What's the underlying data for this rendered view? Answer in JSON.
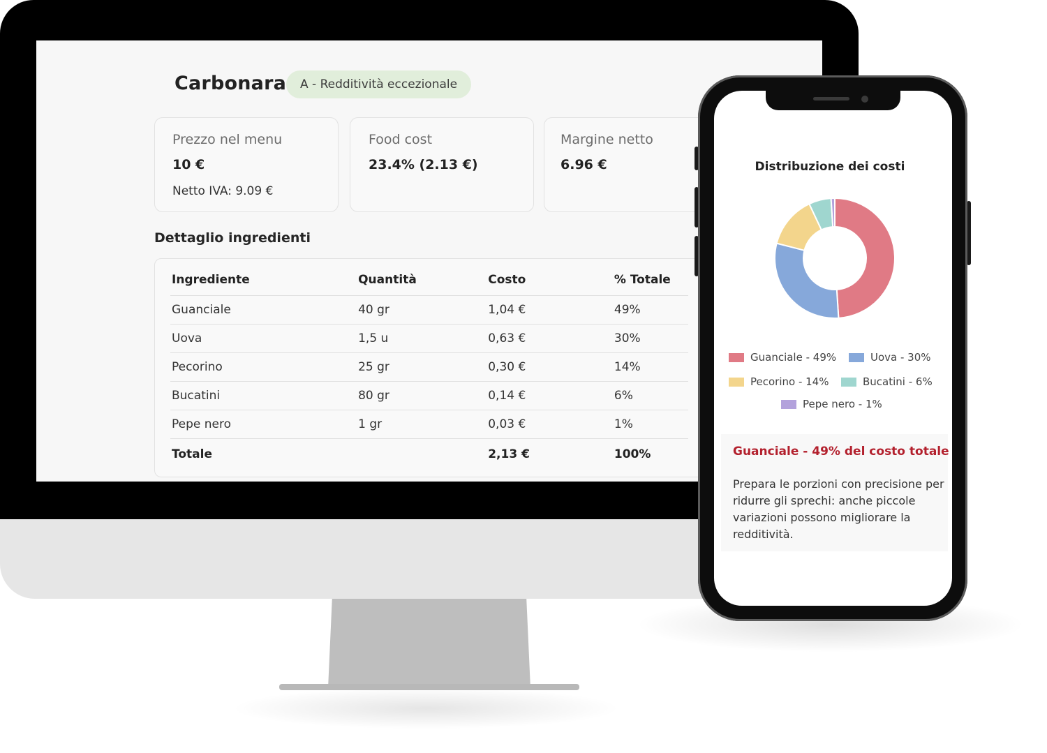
{
  "screen": {
    "dish_name": "Carbonara",
    "rating_badge": "A - Redditività eccezionale",
    "cards": {
      "price": {
        "label": "Prezzo nel menu",
        "value": "10 €",
        "sub": "Netto IVA: 9.09 €"
      },
      "food_cost": {
        "label": "Food cost",
        "value": "23.4% (2.13 €)"
      },
      "margin": {
        "label": "Margine netto",
        "value": "6.96 €"
      }
    },
    "section_title": "Dettaglio ingredienti",
    "table": {
      "headers": [
        "Ingrediente",
        "Quantità",
        "Costo",
        "% Totale"
      ],
      "rows": [
        [
          "Guanciale",
          "40 gr",
          "1,04 €",
          "49%"
        ],
        [
          "Uova",
          "1,5 u",
          "0,63 €",
          "30%"
        ],
        [
          "Pecorino",
          "25 gr",
          "0,30 €",
          "14%"
        ],
        [
          "Bucatini",
          "80 gr",
          "0,14 €",
          "6%"
        ],
        [
          "Pepe nero",
          "1 gr",
          "0,03 €",
          "1%"
        ]
      ],
      "total": [
        "Totale",
        "",
        "2,13 €",
        "100%"
      ]
    }
  },
  "phone": {
    "tip_title": "Guanciale - 49% del costo totale",
    "tip_text": "Prepara le porzioni con precisione per ridurre gli sprechi: anche piccole variazioni possono migliorare la redditività."
  },
  "legend": [
    {
      "label": "Guanciale - 49%",
      "color": "#e07a85"
    },
    {
      "label": "Uova - 30%",
      "color": "#86a8da"
    },
    {
      "label": "Pecorino - 14%",
      "color": "#f3d58c"
    },
    {
      "label": "Bucatini - 6%",
      "color": "#9fd6cf"
    },
    {
      "label": "Pepe nero - 1%",
      "color": "#b3a2dc"
    }
  ],
  "chart_data": {
    "type": "pie",
    "title": "Distribuzione dei costi",
    "donut": true,
    "categories": [
      "Guanciale",
      "Uova",
      "Pecorino",
      "Bucatini",
      "Pepe nero"
    ],
    "values": [
      49,
      30,
      14,
      6,
      1
    ],
    "colors": [
      "#e07a85",
      "#86a8da",
      "#f3d58c",
      "#9fd6cf",
      "#b3a2dc"
    ],
    "legend_position": "bottom"
  }
}
